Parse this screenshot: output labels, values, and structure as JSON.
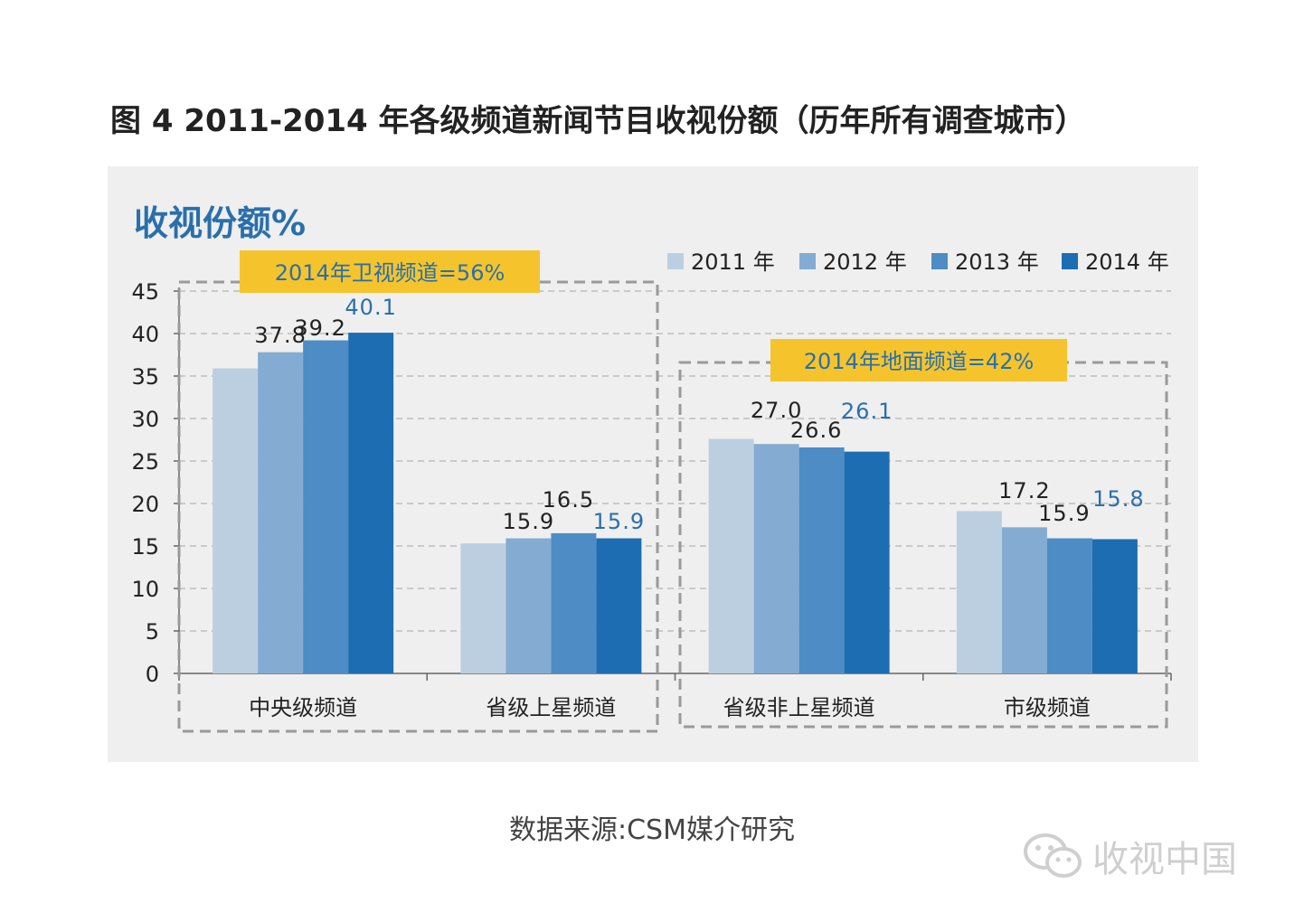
{
  "title": "图 4  2011-2014 年各级频道新闻节目收视份额（历年所有调查城市）",
  "source": "数据来源:CSM媒介研究",
  "watermark": "收视中国",
  "colors": {
    "s2011": "#bccfe1",
    "s2012": "#84acd2",
    "s2013": "#4d8cc4",
    "s2014": "#1c6db2",
    "highlight": "#f5c42c",
    "label_dark": "#222222",
    "label_blue": "#2a6fab"
  },
  "groups": [
    {
      "label": "2014年卫视频道=56%",
      "categories": [
        "中央级频道",
        "省级上星频道"
      ]
    },
    {
      "label": "2014年地面频道=42%",
      "categories": [
        "省级非上星频道",
        "市级频道"
      ]
    }
  ],
  "chart_data": {
    "type": "bar",
    "ylabel": "收视份额%",
    "categories": [
      "中央级频道",
      "省级上星频道",
      "省级非上星频道",
      "市级频道"
    ],
    "series": [
      {
        "name": "2011 年",
        "values": [
          35.9,
          15.3,
          27.6,
          19.1
        ],
        "labels": [
          "",
          "",
          "",
          ""
        ]
      },
      {
        "name": "2012 年",
        "values": [
          37.8,
          15.9,
          27.0,
          17.2
        ],
        "labels": [
          "37.8",
          "15.9",
          "27.0",
          "17.2"
        ]
      },
      {
        "name": "2013 年",
        "values": [
          39.2,
          16.5,
          26.6,
          15.9
        ],
        "labels": [
          "39.2",
          "16.5",
          "26.6",
          "15.9"
        ]
      },
      {
        "name": "2014 年",
        "values": [
          40.1,
          15.9,
          26.1,
          15.8
        ],
        "labels": [
          "40.1",
          "15.9",
          "26.1",
          "15.8"
        ]
      }
    ],
    "ylim": [
      0,
      45
    ],
    "yticks": [
      0,
      5,
      10,
      15,
      20,
      25,
      30,
      35,
      40,
      45
    ],
    "grid": true,
    "legend": "top-right"
  }
}
